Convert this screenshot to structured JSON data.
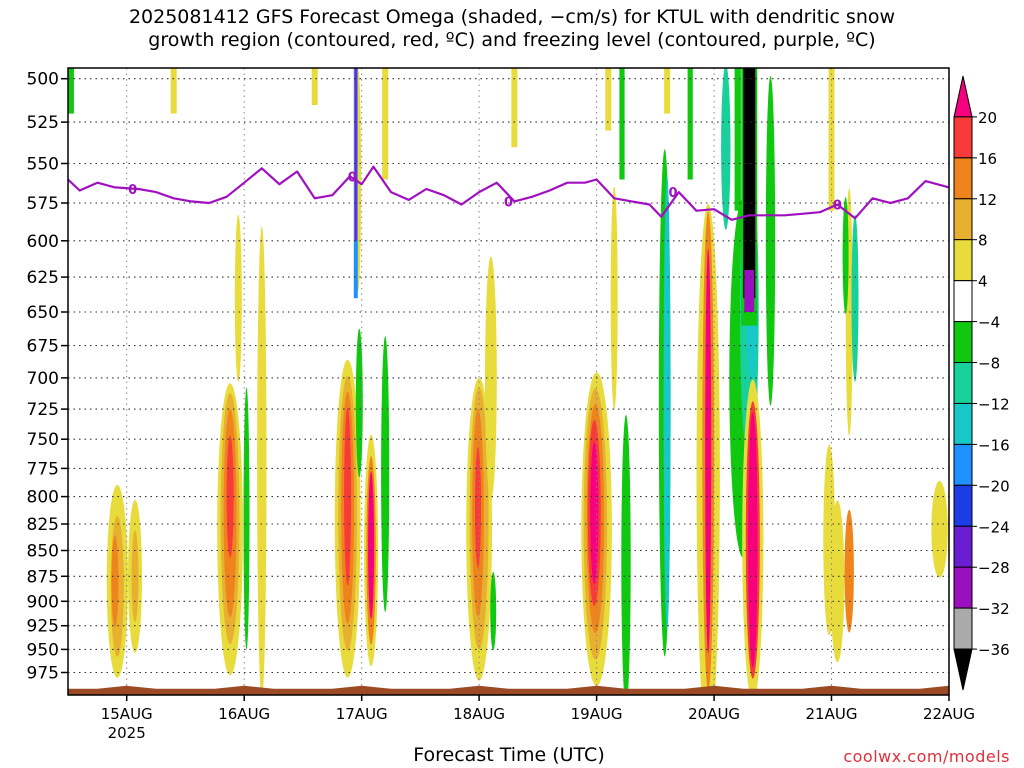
{
  "title": {
    "line1": "2025081412 GFS Forecast Omega (shaded, −cm/s) for KTUL with dendritic snow",
    "line2": "growth region (contoured, red, ºC) and freezing level (contoured, purple, ºC)"
  },
  "footer": {
    "xlabel": "Forecast Time (UTC)",
    "credit": "coolwx.com/models"
  },
  "chart_data": {
    "type": "heatmap",
    "y_axis": {
      "label": "",
      "ticks": [
        500,
        525,
        550,
        575,
        600,
        625,
        650,
        675,
        700,
        725,
        750,
        775,
        800,
        825,
        850,
        875,
        900,
        925,
        950,
        975
      ],
      "range": [
        494,
        1000
      ],
      "scale": "pressure-log",
      "inverted": true
    },
    "x_axis": {
      "label": "Forecast Time (UTC)",
      "ticks": [
        "15AUG",
        "16AUG",
        "17AUG",
        "18AUG",
        "19AUG",
        "20AUG",
        "21AUG",
        "22AUG"
      ],
      "year_label": "2025",
      "range_days": [
        14.5,
        22.0
      ]
    },
    "colorbar": {
      "boundaries": [
        "20",
        "16",
        "12",
        "8",
        "4",
        "−4",
        "−8",
        "−12",
        "−16",
        "−20",
        "−24",
        "−28",
        "−32",
        "−36"
      ],
      "colors": [
        "#f7007f",
        "#f83a3a",
        "#f0841c",
        "#e8b030",
        "#e8dc3c",
        "#ffffff",
        "#10c810",
        "#18d09a",
        "#18c8c8",
        "#1e90ff",
        "#1c3ce6",
        "#6a1ed2",
        "#9a10be",
        "#aaaaaa",
        "#000000"
      ]
    },
    "freezing_level": {
      "label": "0",
      "color": "#a010c0",
      "time_days": [
        14.5,
        14.6,
        14.75,
        14.9,
        15.1,
        15.25,
        15.4,
        15.55,
        15.7,
        15.85,
        16.0,
        16.15,
        16.3,
        16.45,
        16.6,
        16.75,
        16.9,
        17.0,
        17.1,
        17.25,
        17.4,
        17.55,
        17.7,
        17.85,
        18.0,
        18.15,
        18.3,
        18.45,
        18.6,
        18.75,
        18.9,
        19.0,
        19.15,
        19.3,
        19.45,
        19.55,
        19.7,
        19.85,
        20.0,
        20.15,
        20.3,
        20.45,
        20.6,
        20.75,
        20.9,
        21.05,
        21.2,
        21.35,
        21.5,
        21.65,
        21.8,
        21.95,
        22.0
      ],
      "pressure_hpa": [
        560,
        567,
        562,
        565,
        566,
        568,
        572,
        574,
        575,
        571,
        562,
        553,
        563,
        555,
        572,
        570,
        558,
        563,
        552,
        568,
        573,
        566,
        570,
        576,
        568,
        562,
        574,
        571,
        567,
        562,
        562,
        560,
        572,
        574,
        576,
        584,
        568,
        580,
        579,
        586,
        583,
        583,
        583,
        582,
        581,
        576,
        585,
        572,
        575,
        572,
        561,
        564,
        565
      ]
    },
    "terrain_pressure_hpa": 993
  }
}
